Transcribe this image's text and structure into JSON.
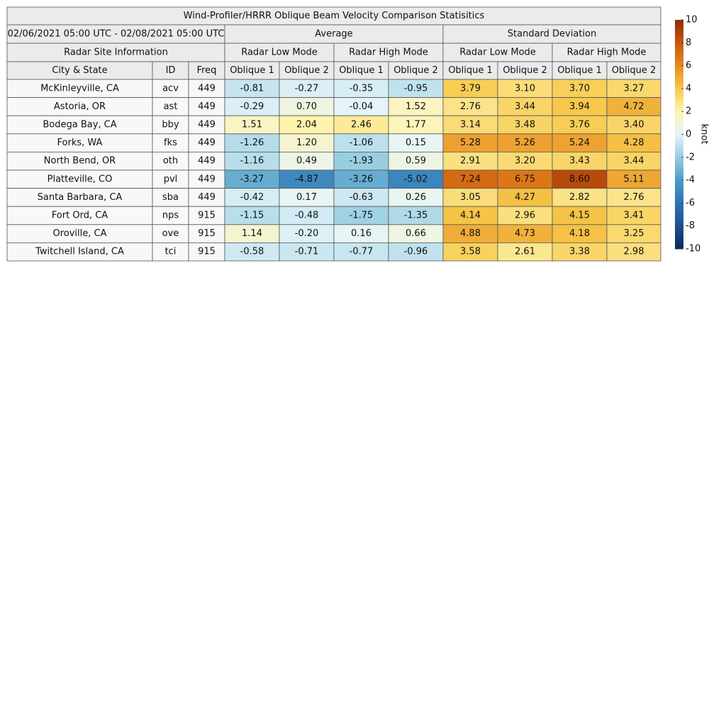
{
  "title": "Wind-Profiler/HRRR Oblique Beam Velocity Comparison Statisitics",
  "period": "02/06/2021 05:00 UTC - 02/08/2021 05:00 UTC",
  "groups": [
    "Average",
    "Standard Deviation"
  ],
  "site_info": "Radar Site Information",
  "modes": [
    "Radar Low Mode",
    "Radar High Mode",
    "Radar Low Mode",
    "Radar High Mode"
  ],
  "columns": [
    "City & State",
    "ID",
    "Freq",
    "Oblique 1",
    "Oblique 2",
    "Oblique 1",
    "Oblique 2",
    "Oblique 1",
    "Oblique 2",
    "Oblique 1",
    "Oblique 2"
  ],
  "rows": [
    [
      "McKinleyville, CA",
      "acv",
      "449",
      "-0.81",
      "-0.27",
      "-0.35",
      "-0.95",
      "3.79",
      "3.10",
      "3.70",
      "3.27"
    ],
    [
      "Astoria, OR",
      "ast",
      "449",
      "-0.29",
      "0.70",
      "-0.04",
      "1.52",
      "2.76",
      "3.44",
      "3.94",
      "4.72"
    ],
    [
      "Bodega Bay, CA",
      "bby",
      "449",
      "1.51",
      "2.04",
      "2.46",
      "1.77",
      "3.14",
      "3.48",
      "3.76",
      "3.40"
    ],
    [
      "Forks, WA",
      "fks",
      "449",
      "-1.26",
      "1.20",
      "-1.06",
      "0.15",
      "5.28",
      "5.26",
      "5.24",
      "4.28"
    ],
    [
      "North Bend, OR",
      "oth",
      "449",
      "-1.16",
      "0.49",
      "-1.93",
      "0.59",
      "2.91",
      "3.20",
      "3.43",
      "3.44"
    ],
    [
      "Platteville, CO",
      "pvl",
      "449",
      "-3.27",
      "-4.87",
      "-3.26",
      "-5.02",
      "7.24",
      "6.75",
      "8.60",
      "5.11"
    ],
    [
      "Santa Barbara, CA",
      "sba",
      "449",
      "-0.42",
      "0.17",
      "-0.63",
      "0.26",
      "3.05",
      "4.27",
      "2.82",
      "2.76"
    ],
    [
      "Fort Ord, CA",
      "nps",
      "915",
      "-1.15",
      "-0.48",
      "-1.75",
      "-1.35",
      "4.14",
      "2.96",
      "4.15",
      "3.41"
    ],
    [
      "Oroville, CA",
      "ove",
      "915",
      "1.14",
      "-0.20",
      "0.16",
      "0.66",
      "4.88",
      "4.73",
      "4.18",
      "3.25"
    ],
    [
      "Twitchell Island, CA",
      "tci",
      "915",
      "-0.58",
      "-0.71",
      "-0.77",
      "-0.96",
      "3.58",
      "2.61",
      "3.38",
      "2.98"
    ]
  ],
  "colorbar": {
    "label": "knot",
    "lim": [
      -10,
      10
    ],
    "ticks": [
      -10,
      -8,
      -6,
      -4,
      -2,
      0,
      2,
      4,
      6,
      8,
      10
    ],
    "colors": [
      "#0b2a5b",
      "#1a4f8f",
      "#2d73b3",
      "#4c9ac9",
      "#96cde0",
      "#e6f5fa",
      "#fff4b0",
      "#f6c84a",
      "#e88a22",
      "#c8560b",
      "#8f2c0c"
    ]
  }
}
